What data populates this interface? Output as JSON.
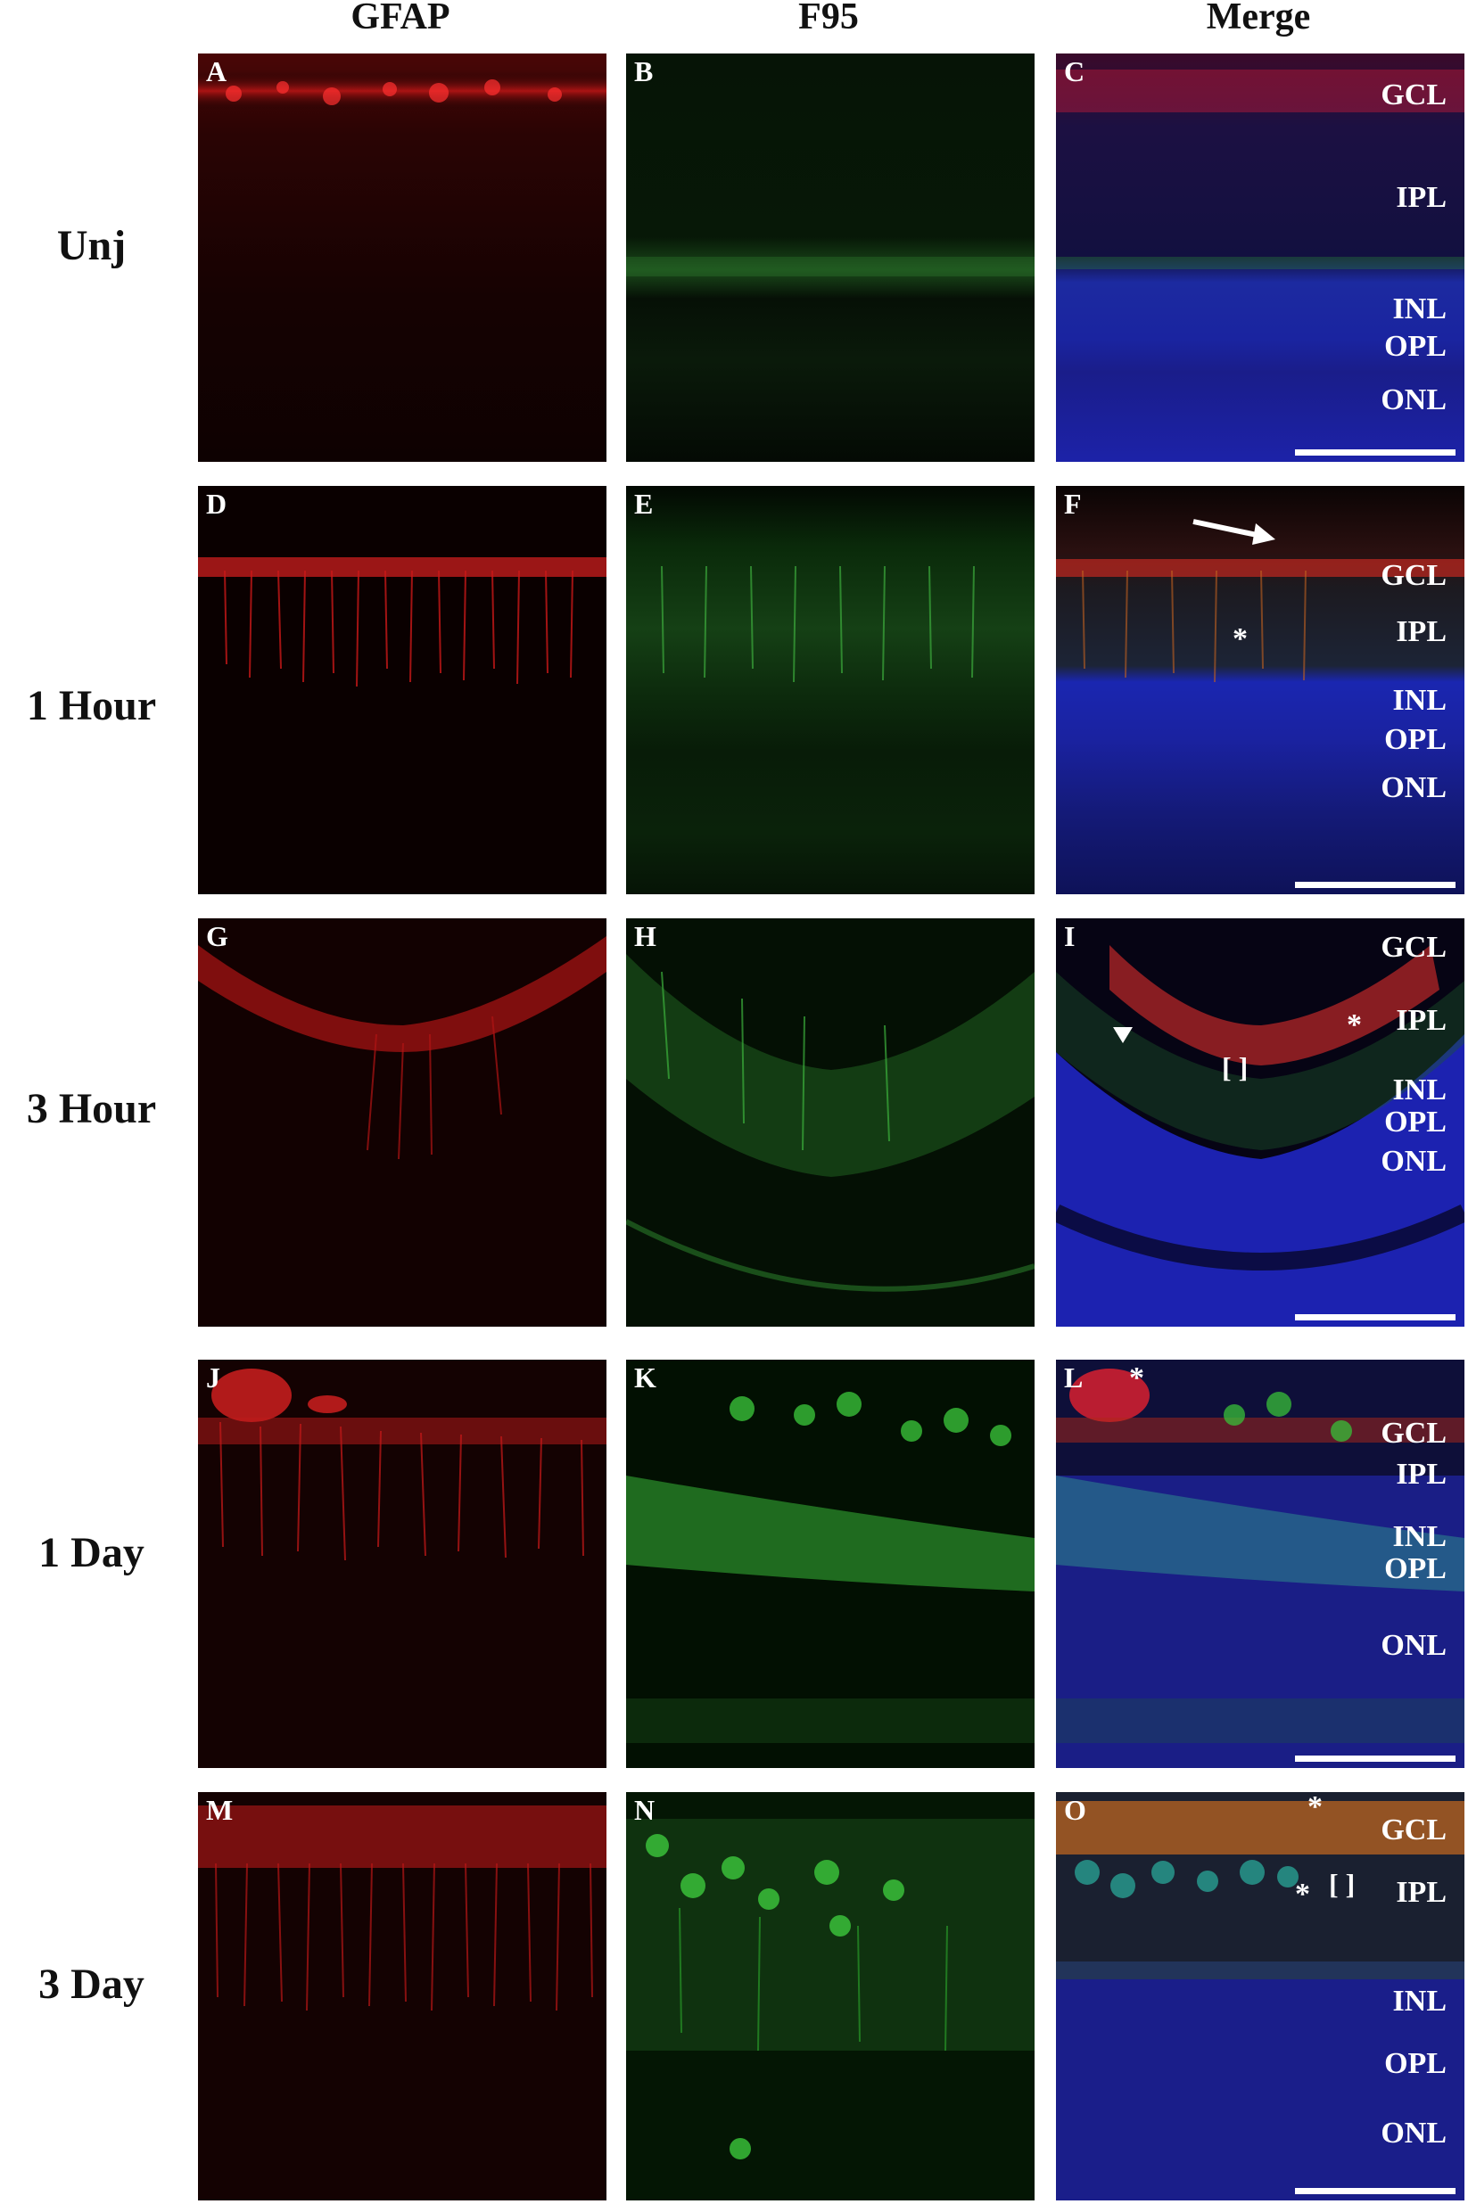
{
  "column_headers": [
    "GFAP",
    "F95",
    "Merge"
  ],
  "row_labels": [
    "Unj",
    "1 Hour",
    "3 Hour",
    "1 Day",
    "3 Day"
  ],
  "panel_letters": [
    [
      "A",
      "B",
      "C"
    ],
    [
      "D",
      "E",
      "F"
    ],
    [
      "G",
      "H",
      "I"
    ],
    [
      "J",
      "K",
      "L"
    ],
    [
      "M",
      "N",
      "O"
    ]
  ],
  "layer_labels": {
    "unj": [
      "GCL",
      "IPL",
      "INL",
      "OPL",
      "ONL"
    ],
    "hour1": [
      "GCL",
      "IPL",
      "INL",
      "OPL",
      "ONL"
    ],
    "hour3": [
      "GCL",
      "IPL",
      "INL",
      "OPL",
      "ONL"
    ],
    "day1": [
      "GCL",
      "IPL",
      "INL",
      "OPL",
      "ONL"
    ],
    "day3": [
      "GCL",
      "IPL",
      "INL",
      "OPL",
      "ONL"
    ]
  },
  "markers": {
    "asterisk": "*",
    "bracket_pair": "[ ]"
  },
  "colors": {
    "gfap_red": "#e02020",
    "f95_green": "#30c030",
    "dapi_blue": "#2a2ad0",
    "background": "#000000"
  }
}
